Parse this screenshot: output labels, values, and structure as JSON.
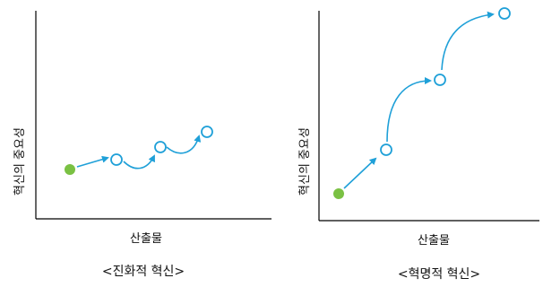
{
  "panels": [
    {
      "id": "evolutionary",
      "y_axis_label": "혁신의 중요성",
      "x_axis_label": "산출물",
      "caption": "<진화적 혁신>",
      "colors": {
        "start_point": "#7ac143",
        "points": "#1fa0d8",
        "arrows": "#1fa0d8",
        "caption": "#2a8ec8"
      }
    },
    {
      "id": "revolutionary",
      "y_axis_label": "혁신의 중요성",
      "x_axis_label": "산출물",
      "caption": "<혁명적 혁신>",
      "colors": {
        "start_point": "#7ac143",
        "points": "#1fa0d8",
        "arrows": "#1fa0d8",
        "caption": "#2a8ec8"
      }
    }
  ]
}
